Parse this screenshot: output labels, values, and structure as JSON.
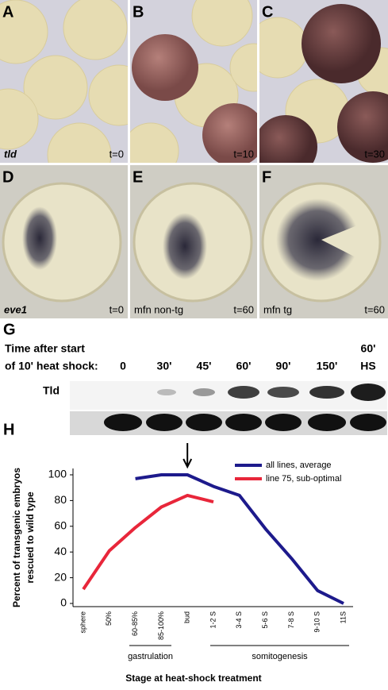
{
  "panels": [
    {
      "letter": "A",
      "label": "tld",
      "time": "t=0"
    },
    {
      "letter": "B",
      "time": "t=10"
    },
    {
      "letter": "C",
      "time": "t=30"
    },
    {
      "letter": "D",
      "label": "eve1",
      "time": "t=0"
    },
    {
      "letter": "E",
      "label": "mfn non-tg",
      "time": "t=60"
    },
    {
      "letter": "F",
      "label": "mfn tg",
      "time": "t=60"
    }
  ],
  "blot": {
    "letter": "G",
    "heading": [
      "Time after start",
      "of 10' heat shock:"
    ],
    "lanes": [
      "0",
      "30'",
      "45'",
      "60'",
      "90'",
      "150'",
      "60'"
    ],
    "lane_note": "HS",
    "row_label": "Tld"
  },
  "chart_letter": "H",
  "chart_data": {
    "type": "line",
    "categories": [
      "sphere",
      "50%",
      "60-85%",
      "85-100%",
      "bud",
      "1-2 S",
      "3-4 S",
      "5-6 S",
      "7-8 S",
      "9-10 S",
      "11S"
    ],
    "series": [
      {
        "name": "all lines, average",
        "color": "#1d1a8c",
        "values": [
          null,
          null,
          97,
          100,
          100,
          91,
          84,
          58,
          35,
          10,
          0
        ]
      },
      {
        "name": "line 75, sub-optimal",
        "color": "#e8263a",
        "values": [
          11,
          41,
          59,
          75,
          84,
          79,
          null,
          null,
          null,
          null,
          null
        ]
      }
    ],
    "ylim": [
      0,
      100
    ],
    "yticks": [
      0,
      20,
      40,
      60,
      80,
      100
    ],
    "ylabel": [
      "Percent of transgenic embryos",
      "rescued to wild type"
    ],
    "xlabel": "Stage at heat-shock treatment",
    "annotations": [
      "gastrulation",
      "somitogenesis"
    ]
  }
}
